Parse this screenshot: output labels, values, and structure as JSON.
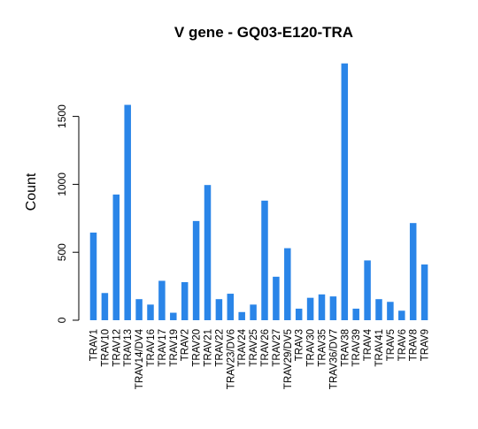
{
  "chart_data": {
    "type": "bar",
    "title": "V gene - GQ03-E120-TRA",
    "xlabel": "",
    "ylabel": "Count",
    "ylim": [
      0,
      1900
    ],
    "yticks": [
      0,
      500,
      1000,
      1500
    ],
    "grid": false,
    "legend": "none",
    "bar_color": "#2a85e8",
    "categories": [
      "TRAV1",
      "TRAV10",
      "TRAV12",
      "TRAV13",
      "TRAV14/DV4",
      "TRAV16",
      "TRAV17",
      "TRAV19",
      "TRAV2",
      "TRAV20",
      "TRAV21",
      "TRAV22",
      "TRAV23/DV6",
      "TRAV24",
      "TRAV25",
      "TRAV26",
      "TRAV27",
      "TRAV29/DV5",
      "TRAV3",
      "TRAV30",
      "TRAV35",
      "TRAV36/DV7",
      "TRAV38",
      "TRAV39",
      "TRAV4",
      "TRAV41",
      "TRAV5",
      "TRAV6",
      "TRAV8",
      "TRAV9"
    ],
    "values": [
      645,
      200,
      925,
      1585,
      155,
      115,
      290,
      55,
      280,
      730,
      995,
      155,
      195,
      60,
      115,
      880,
      320,
      530,
      85,
      165,
      190,
      175,
      1890,
      85,
      440,
      155,
      135,
      70,
      715,
      410
    ]
  }
}
